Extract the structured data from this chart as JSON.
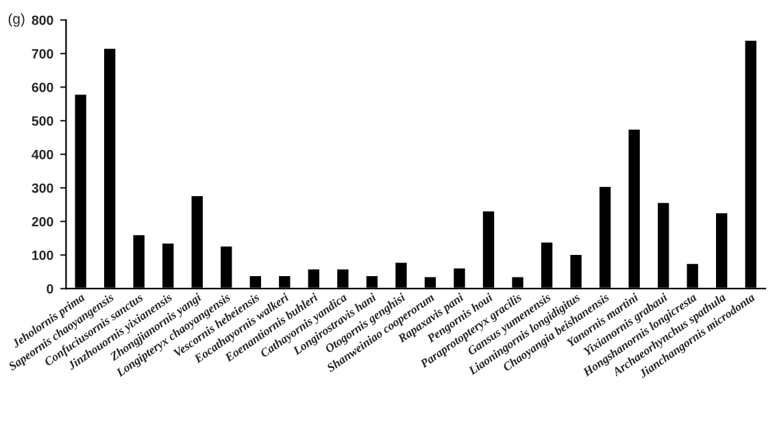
{
  "chart_data": {
    "type": "bar",
    "annotations": [
      "(g)"
    ],
    "categories": [
      "Jeholornis prima",
      "Sapeornis chaoyangensis",
      "Confuciusornis sanctus",
      "Jinzhouornis yixianensis",
      "Zhongjianornis yangi",
      "Longipteryx chaoyangensis",
      "Vescornis hebeiensis",
      "Eocathayornis walkeri",
      "Eoenantiornis buhleri",
      "Cathayornis yandica",
      "Longirostravis hani",
      "Otogornis genghisi",
      "Shanweiniao cooperorum",
      "Rapaxavis pani",
      "Pengornis houi",
      "Paraprotopteryx gracilis",
      "Gansus yumenensis",
      "Liaoningornis longidigitus",
      "Chaoyangia beishanensis",
      "Yanornis martini",
      "Yixianornis grabaui",
      "Hongshanornis longicresta",
      "Archaeorhynchus spathula",
      "Jianchangornis microdonta"
    ],
    "values": [
      580,
      717,
      162,
      137,
      278,
      128,
      40,
      40,
      60,
      60,
      40,
      80,
      37,
      63,
      233,
      37,
      140,
      103,
      306,
      476,
      258,
      76,
      227,
      741
    ],
    "color": "#000000",
    "ylim": [
      0,
      800
    ],
    "yticks": [
      0,
      100,
      200,
      300,
      400,
      500,
      600,
      700,
      800
    ],
    "grid": false
  }
}
